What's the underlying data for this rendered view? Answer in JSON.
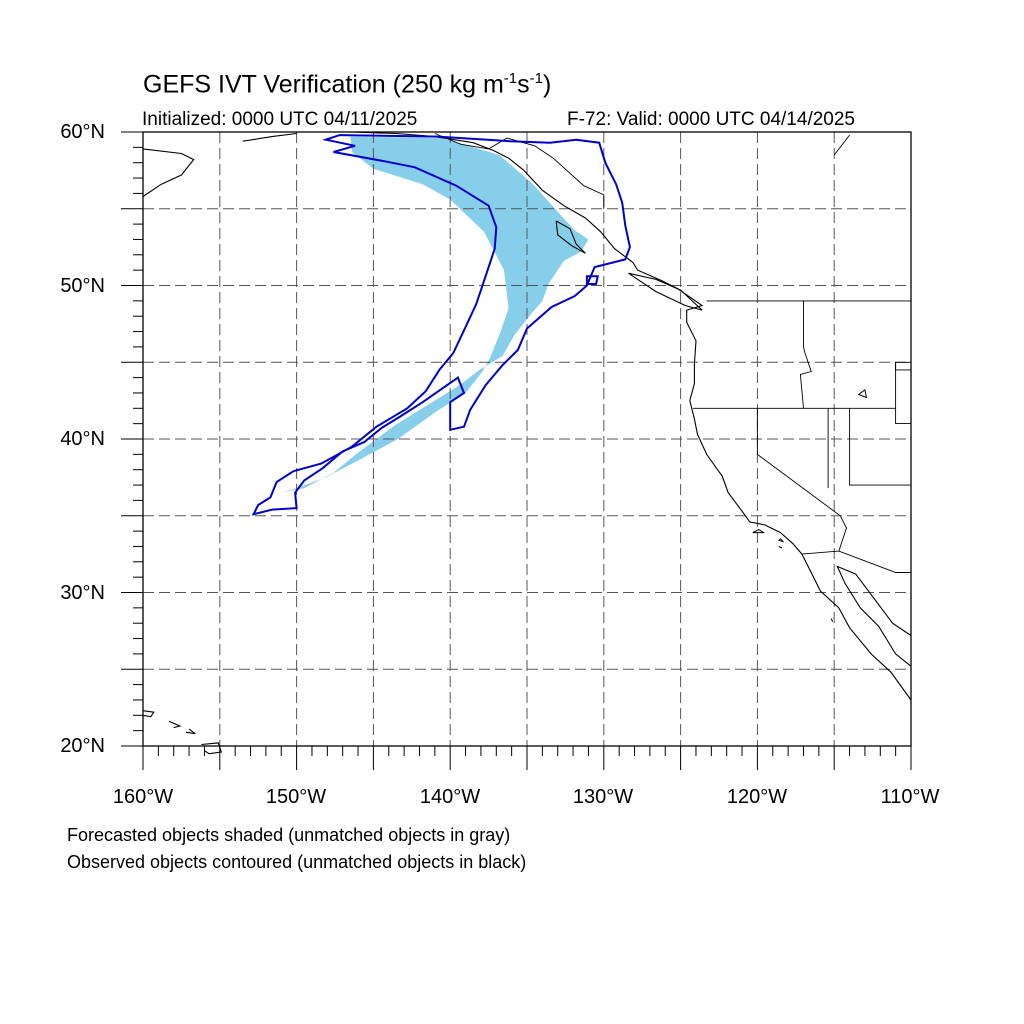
{
  "title": {
    "main": "GEFS IVT Verification (250 kg m",
    "exp1": "-1",
    "mid": "s",
    "exp2": "-1",
    "end": ")"
  },
  "subtitle": {
    "left": "Initialized: 0000 UTC 04/11/2025",
    "right": "F-72: Valid: 0000 UTC 04/14/2025"
  },
  "legend_notes": [
    "Forecasted objects shaded (unmatched objects in gray)",
    "Observed objects contoured (unmatched objects in black)"
  ],
  "axes": {
    "lat_labels": [
      "60°N",
      "50°N",
      "40°N",
      "30°N",
      "20°N"
    ],
    "lon_labels": [
      "160°W",
      "150°W",
      "140°W",
      "130°W",
      "120°W",
      "110°W"
    ],
    "lat_range": [
      20,
      60
    ],
    "lon_range": [
      -160,
      -110
    ],
    "grid_step_deg": 5
  },
  "colors": {
    "forecast_fill": "#87ceeb",
    "observed_contour": "#0000cc",
    "coastline": "#000000",
    "grid": "#555555"
  },
  "forecast_object": {
    "vertices": [
      [
        -146.5,
        59.7
      ],
      [
        -140.5,
        59.6
      ],
      [
        -136.8,
        58.5
      ],
      [
        -134.6,
        56.6
      ],
      [
        -133.0,
        54.8
      ],
      [
        -131.9,
        53.6
      ],
      [
        -131.0,
        53.0
      ],
      [
        -131.5,
        52.2
      ],
      [
        -132.6,
        51.6
      ],
      [
        -133.6,
        50.1
      ],
      [
        -134.0,
        49.0
      ],
      [
        -134.6,
        48.3
      ],
      [
        -135.8,
        46.8
      ],
      [
        -136.6,
        45.4
      ],
      [
        -138.1,
        44.5
      ],
      [
        -139.4,
        43.5
      ],
      [
        -141.0,
        42.5
      ],
      [
        -143.6,
        40.9
      ],
      [
        -146.0,
        39.1
      ],
      [
        -147.6,
        37.8
      ],
      [
        -149.5,
        36.8
      ],
      [
        -151.0,
        36.5
      ],
      [
        -150.3,
        36.7
      ],
      [
        -148.1,
        37.5
      ],
      [
        -146.0,
        38.6
      ],
      [
        -143.4,
        40.0
      ],
      [
        -140.9,
        41.8
      ],
      [
        -139.0,
        43.0
      ],
      [
        -137.9,
        44.4
      ],
      [
        -137.4,
        45.3
      ],
      [
        -136.8,
        46.8
      ],
      [
        -136.2,
        48.5
      ],
      [
        -136.5,
        51.0
      ],
      [
        -137.8,
        53.5
      ],
      [
        -140.0,
        55.6
      ],
      [
        -141.8,
        56.6
      ],
      [
        -145.0,
        57.6
      ],
      [
        -146.4,
        58.7
      ]
    ]
  },
  "observed_contours": [
    {
      "vertices": [
        [
          -147.2,
          59.8
        ],
        [
          -140.8,
          59.7
        ],
        [
          -136.1,
          59.4
        ],
        [
          -133.5,
          59.3
        ],
        [
          -131.8,
          59.5
        ],
        [
          -130.3,
          59.3
        ],
        [
          -129.9,
          58.0
        ],
        [
          -129.2,
          56.6
        ],
        [
          -128.8,
          55.4
        ],
        [
          -128.6,
          53.9
        ],
        [
          -128.3,
          52.5
        ],
        [
          -128.6,
          51.7
        ],
        [
          -130.6,
          51.2
        ],
        [
          -131.1,
          50.0
        ],
        [
          -131.9,
          49.3
        ],
        [
          -133.4,
          48.6
        ],
        [
          -135.0,
          47.2
        ],
        [
          -135.6,
          45.8
        ],
        [
          -136.6,
          44.8
        ],
        [
          -137.7,
          43.5
        ],
        [
          -138.7,
          41.9
        ],
        [
          -139.1,
          40.8
        ],
        [
          -140.0,
          40.6
        ],
        [
          -140.0,
          42.4
        ],
        [
          -139.1,
          43.0
        ],
        [
          -139.5,
          44.0
        ],
        [
          -141.8,
          42.4
        ],
        [
          -143.2,
          41.5
        ],
        [
          -144.5,
          40.7
        ],
        [
          -145.6,
          39.8
        ],
        [
          -147.0,
          39.2
        ],
        [
          -148.3,
          38.1
        ],
        [
          -149.5,
          37.3
        ],
        [
          -150.1,
          36.5
        ],
        [
          -150.0,
          35.5
        ],
        [
          -151.6,
          35.4
        ],
        [
          -152.8,
          35.1
        ],
        [
          -152.5,
          35.7
        ],
        [
          -151.7,
          36.2
        ],
        [
          -151.3,
          37.2
        ],
        [
          -150.2,
          37.9
        ],
        [
          -148.4,
          38.4
        ],
        [
          -146.4,
          39.5
        ],
        [
          -144.8,
          40.8
        ],
        [
          -142.8,
          42.0
        ],
        [
          -141.6,
          43.1
        ],
        [
          -140.7,
          44.5
        ],
        [
          -139.8,
          45.6
        ],
        [
          -139.0,
          47.3
        ],
        [
          -138.3,
          48.8
        ],
        [
          -137.6,
          50.9
        ],
        [
          -137.1,
          52.4
        ],
        [
          -137.0,
          53.8
        ],
        [
          -137.5,
          55.2
        ],
        [
          -139.6,
          56.5
        ],
        [
          -142.3,
          57.7
        ],
        [
          -144.3,
          58.1
        ],
        [
          -147.6,
          58.7
        ],
        [
          -146.2,
          59.1
        ],
        [
          -148.1,
          59.5
        ]
      ]
    },
    {
      "vertices": [
        [
          -131.1,
          50.1
        ],
        [
          -130.5,
          50.1
        ],
        [
          -130.4,
          50.6
        ],
        [
          -131.1,
          50.6
        ]
      ]
    }
  ],
  "coastlines": [
    [
      [
        -160.0,
        58.9
      ],
      [
        -157.5,
        58.6
      ],
      [
        -156.7,
        58.2
      ],
      [
        -157.5,
        57.2
      ],
      [
        -158.8,
        56.6
      ],
      [
        -160.0,
        55.8
      ]
    ],
    [
      [
        -153.5,
        59.4
      ],
      [
        -151.6,
        59.7
      ],
      [
        -150.0,
        59.9
      ]
    ],
    [
      [
        -148.5,
        60.0
      ],
      [
        -146.5,
        60.0
      ],
      [
        -143.5,
        59.9
      ],
      [
        -141.0,
        59.7
      ],
      [
        -138.5,
        59.3
      ],
      [
        -137.2,
        58.8
      ],
      [
        -136.2,
        58.3
      ],
      [
        -135.2,
        57.5
      ],
      [
        -134.0,
        56.2
      ],
      [
        -132.6,
        55.2
      ],
      [
        -131.2,
        54.4
      ],
      [
        -130.2,
        53.5
      ],
      [
        -129.3,
        52.4
      ],
      [
        -128.1,
        51.5
      ],
      [
        -127.8,
        51.0
      ],
      [
        -126.2,
        50.3
      ],
      [
        -125.2,
        49.8
      ],
      [
        -123.6,
        48.7
      ],
      [
        -124.6,
        48.4
      ],
      [
        -124.6,
        47.6
      ],
      [
        -124.0,
        46.4
      ],
      [
        -124.1,
        44.9
      ],
      [
        -124.1,
        43.6
      ],
      [
        -124.4,
        42.5
      ],
      [
        -124.1,
        41.3
      ],
      [
        -123.9,
        40.3
      ],
      [
        -123.3,
        39.0
      ],
      [
        -122.6,
        38.0
      ],
      [
        -122.3,
        37.6
      ],
      [
        -121.9,
        36.5
      ],
      [
        -121.0,
        35.3
      ],
      [
        -120.5,
        34.6
      ],
      [
        -119.5,
        34.4
      ],
      [
        -118.5,
        33.9
      ],
      [
        -117.7,
        33.2
      ],
      [
        -117.1,
        32.5
      ],
      [
        -116.5,
        31.3
      ],
      [
        -115.9,
        30.1
      ],
      [
        -114.7,
        29.0
      ],
      [
        -114.0,
        27.7
      ],
      [
        -112.6,
        26.0
      ],
      [
        -111.3,
        24.8
      ],
      [
        -110.0,
        23.0
      ]
    ],
    [
      [
        -110.0,
        27.2
      ],
      [
        -111.2,
        28.0
      ],
      [
        -112.4,
        29.6
      ],
      [
        -113.6,
        31.2
      ],
      [
        -114.8,
        31.7
      ],
      [
        -114.3,
        30.6
      ],
      [
        -113.3,
        29.0
      ],
      [
        -112.1,
        27.8
      ],
      [
        -111.0,
        26.0
      ],
      [
        -110.0,
        25.2
      ]
    ],
    [
      [
        -133.1,
        54.2
      ],
      [
        -132.2,
        53.7
      ],
      [
        -131.8,
        52.7
      ],
      [
        -131.2,
        52.1
      ],
      [
        -132.1,
        52.6
      ],
      [
        -133.0,
        53.3
      ],
      [
        -133.1,
        54.2
      ]
    ],
    [
      [
        -128.4,
        50.8
      ],
      [
        -126.6,
        50.4
      ],
      [
        -125.0,
        49.7
      ],
      [
        -123.6,
        48.4
      ],
      [
        -124.7,
        48.7
      ],
      [
        -126.6,
        49.6
      ],
      [
        -128.4,
        50.8
      ]
    ],
    [
      [
        -160.0,
        22.3
      ],
      [
        -159.3,
        22.2
      ],
      [
        -159.5,
        21.9
      ],
      [
        -160.0,
        22.0
      ]
    ],
    [
      [
        -158.3,
        21.6
      ],
      [
        -157.6,
        21.3
      ],
      [
        -158.0,
        21.2
      ]
    ],
    [
      [
        -157.0,
        21.1
      ],
      [
        -156.6,
        20.8
      ],
      [
        -157.2,
        20.9
      ]
    ],
    [
      [
        -156.2,
        20.1
      ],
      [
        -155.1,
        20.2
      ],
      [
        -154.9,
        19.6
      ],
      [
        -155.7,
        19.5
      ],
      [
        -156.0,
        19.7
      ]
    ]
  ],
  "borders": [
    [
      [
        -141.0,
        59.9
      ],
      [
        -139.3,
        59.2
      ],
      [
        -137.5,
        58.9
      ],
      [
        -136.3,
        59.6
      ],
      [
        -134.5,
        59.1
      ],
      [
        -133.3,
        58.3
      ],
      [
        -131.3,
        56.5
      ],
      [
        -130.0,
        55.9
      ],
      [
        -130.0,
        55.0
      ]
    ],
    [
      [
        -123.3,
        49.0
      ],
      [
        -110.0,
        49.0
      ]
    ],
    [
      [
        -117.0,
        49.0
      ],
      [
        -117.0,
        46.0
      ],
      [
        -116.9,
        45.6
      ],
      [
        -116.5,
        44.4
      ],
      [
        -117.2,
        44.2
      ],
      [
        -117.0,
        42.0
      ]
    ],
    [
      [
        -124.2,
        42.0
      ],
      [
        -111.0,
        42.0
      ]
    ],
    [
      [
        -120.0,
        42.0
      ],
      [
        -120.0,
        39.0
      ],
      [
        -114.6,
        35.0
      ]
    ],
    [
      [
        -114.6,
        35.0
      ],
      [
        -114.2,
        34.2
      ],
      [
        -114.7,
        32.7
      ]
    ],
    [
      [
        -117.1,
        32.5
      ],
      [
        -114.7,
        32.7
      ],
      [
        -111.0,
        31.3
      ],
      [
        -110.0,
        31.3
      ]
    ],
    [
      [
        -114.0,
        42.0
      ],
      [
        -114.0,
        37.0
      ],
      [
        -110.0,
        37.0
      ]
    ],
    [
      [
        -111.0,
        45.0
      ],
      [
        -111.0,
        44.5
      ],
      [
        -110.0,
        44.5
      ]
    ],
    [
      [
        -110.0,
        45.0
      ],
      [
        -111.0,
        45.0
      ],
      [
        -111.0,
        41.0
      ],
      [
        -110.0,
        41.0
      ]
    ],
    [
      [
        -115.4,
        42.0
      ],
      [
        -115.4,
        36.8
      ]
    ],
    [
      [
        -115.0,
        58.5
      ],
      [
        -114.0,
        59.8
      ]
    ]
  ],
  "islands": [
    [
      [
        -120.3,
        33.9
      ],
      [
        -119.6,
        33.9
      ],
      [
        -119.9,
        34.1
      ]
    ],
    [
      [
        -118.6,
        33.4
      ],
      [
        -118.3,
        33.3
      ],
      [
        -118.5,
        33.5
      ]
    ],
    [
      [
        -118.4,
        32.9
      ],
      [
        -118.6,
        33.0
      ]
    ],
    [
      [
        -115.2,
        28.3
      ],
      [
        -115.1,
        28.1
      ]
    ],
    [
      [
        -113.4,
        42.9
      ],
      [
        -112.9,
        42.7
      ],
      [
        -113.0,
        43.2
      ]
    ]
  ]
}
